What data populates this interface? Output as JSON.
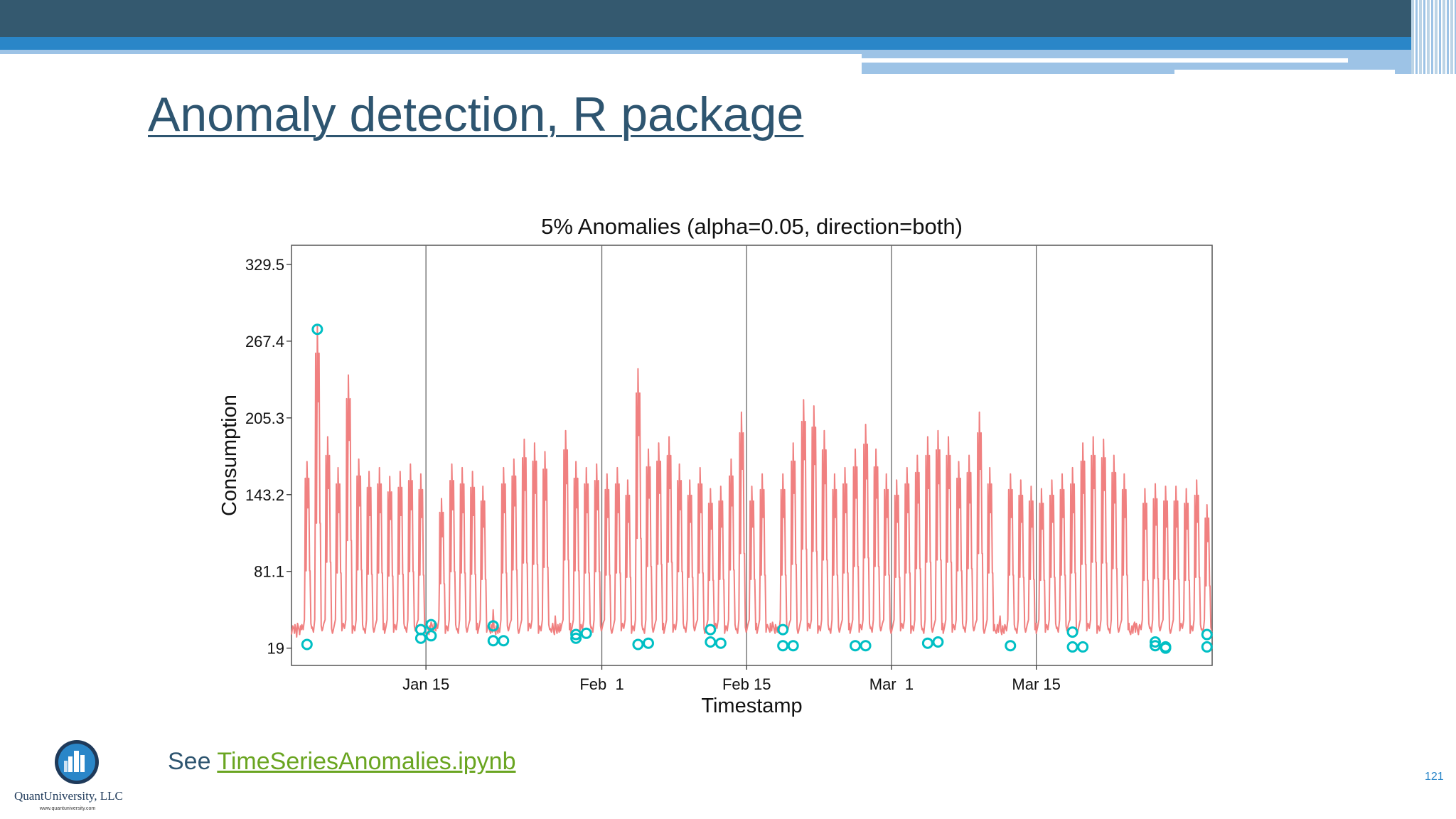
{
  "slide": {
    "title": "Anomaly detection, R package",
    "footer_prefix": "See",
    "footer_link": "TimeSeriesAnomalies.ipynb",
    "logo_name": "QuantUniversity, LLC",
    "logo_url": "www.quantuniversity.com",
    "page_number": "121"
  },
  "colors": {
    "header_dark": "#34596f",
    "header_blue": "#2a86c8",
    "title": "#2e5570",
    "link": "#6aa521",
    "series_line": "#f08080",
    "anomaly_marker": "#00bfc4"
  },
  "chart_data": {
    "type": "line",
    "title": "5% Anomalies (alpha=0.05, direction=both)",
    "xlabel": "Timestamp",
    "ylabel": "Consumption",
    "x_start": "2015-01-02",
    "x_end": "2015-03-31",
    "x_ticks": [
      {
        "date": "2015-01-15",
        "label": "Jan 15"
      },
      {
        "date": "2015-02-01",
        "label": "Feb  1"
      },
      {
        "date": "2015-02-15",
        "label": "Feb 15"
      },
      {
        "date": "2015-03-01",
        "label": "Mar  1"
      },
      {
        "date": "2015-03-15",
        "label": "Mar 15"
      }
    ],
    "y_ticks": [
      19,
      81.1,
      143.2,
      205.3,
      267.4,
      329.5
    ],
    "ylim": [
      5,
      345
    ],
    "grid": "vertical lines at x ticks",
    "series": [
      {
        "type": "line",
        "description": "hourly consumption, daily cycles",
        "daily_peaks": [
          [
            "2015-01-02",
            28
          ],
          [
            "2015-01-03",
            170
          ],
          [
            "2015-01-04",
            280
          ],
          [
            "2015-01-05",
            190
          ],
          [
            "2015-01-06",
            165
          ],
          [
            "2015-01-07",
            240
          ],
          [
            "2015-01-08",
            172
          ],
          [
            "2015-01-09",
            162
          ],
          [
            "2015-01-10",
            165
          ],
          [
            "2015-01-11",
            158
          ],
          [
            "2015-01-12",
            162
          ],
          [
            "2015-01-13",
            168
          ],
          [
            "2015-01-14",
            160
          ],
          [
            "2015-01-15",
            40
          ],
          [
            "2015-01-16",
            140
          ],
          [
            "2015-01-17",
            168
          ],
          [
            "2015-01-18",
            165
          ],
          [
            "2015-01-19",
            162
          ],
          [
            "2015-01-20",
            150
          ],
          [
            "2015-01-21",
            50
          ],
          [
            "2015-01-22",
            165
          ],
          [
            "2015-01-23",
            172
          ],
          [
            "2015-01-24",
            188
          ],
          [
            "2015-01-25",
            185
          ],
          [
            "2015-01-26",
            178
          ],
          [
            "2015-01-27",
            45
          ],
          [
            "2015-01-28",
            195
          ],
          [
            "2015-01-29",
            170
          ],
          [
            "2015-01-30",
            165
          ],
          [
            "2015-01-31",
            168
          ],
          [
            "2015-02-01",
            160
          ],
          [
            "2015-02-02",
            165
          ],
          [
            "2015-02-03",
            155
          ],
          [
            "2015-02-04",
            245
          ],
          [
            "2015-02-05",
            180
          ],
          [
            "2015-02-06",
            185
          ],
          [
            "2015-02-07",
            190
          ],
          [
            "2015-02-08",
            168
          ],
          [
            "2015-02-09",
            155
          ],
          [
            "2015-02-10",
            165
          ],
          [
            "2015-02-11",
            148
          ],
          [
            "2015-02-12",
            150
          ],
          [
            "2015-02-13",
            172
          ],
          [
            "2015-02-14",
            210
          ],
          [
            "2015-02-15",
            150
          ],
          [
            "2015-02-16",
            160
          ],
          [
            "2015-02-17",
            40
          ],
          [
            "2015-02-18",
            160
          ],
          [
            "2015-02-19",
            185
          ],
          [
            "2015-02-20",
            220
          ],
          [
            "2015-02-21",
            215
          ],
          [
            "2015-02-22",
            195
          ],
          [
            "2015-02-23",
            160
          ],
          [
            "2015-02-24",
            165
          ],
          [
            "2015-02-25",
            180
          ],
          [
            "2015-02-26",
            200
          ],
          [
            "2015-02-27",
            180
          ],
          [
            "2015-02-28",
            160
          ],
          [
            "2015-03-01",
            155
          ],
          [
            "2015-03-02",
            165
          ],
          [
            "2015-03-03",
            175
          ],
          [
            "2015-03-04",
            190
          ],
          [
            "2015-03-05",
            195
          ],
          [
            "2015-03-06",
            190
          ],
          [
            "2015-03-07",
            170
          ],
          [
            "2015-03-08",
            175
          ],
          [
            "2015-03-09",
            210
          ],
          [
            "2015-03-10",
            165
          ],
          [
            "2015-03-11",
            45
          ],
          [
            "2015-03-12",
            160
          ],
          [
            "2015-03-13",
            155
          ],
          [
            "2015-03-14",
            150
          ],
          [
            "2015-03-15",
            148
          ],
          [
            "2015-03-16",
            155
          ],
          [
            "2015-03-17",
            160
          ],
          [
            "2015-03-18",
            165
          ],
          [
            "2015-03-19",
            185
          ],
          [
            "2015-03-20",
            190
          ],
          [
            "2015-03-21",
            188
          ],
          [
            "2015-03-22",
            175
          ],
          [
            "2015-03-23",
            160
          ],
          [
            "2015-03-24",
            40
          ],
          [
            "2015-03-25",
            148
          ],
          [
            "2015-03-26",
            152
          ],
          [
            "2015-03-27",
            150
          ],
          [
            "2015-03-28",
            150
          ],
          [
            "2015-03-29",
            148
          ],
          [
            "2015-03-30",
            155
          ],
          [
            "2015-03-31",
            135
          ]
        ],
        "baseline": 34
      },
      {
        "type": "anomalies",
        "points": [
          [
            "2015-01-03",
            22
          ],
          [
            "2015-01-04",
            277
          ],
          [
            "2015-01-14",
            27
          ],
          [
            "2015-01-14",
            34
          ],
          [
            "2015-01-15",
            29
          ],
          [
            "2015-01-15",
            38
          ],
          [
            "2015-01-21",
            25
          ],
          [
            "2015-01-21",
            37
          ],
          [
            "2015-01-22",
            25
          ],
          [
            "2015-01-29",
            30
          ],
          [
            "2015-01-29",
            27
          ],
          [
            "2015-01-30",
            31
          ],
          [
            "2015-02-04",
            22
          ],
          [
            "2015-02-05",
            23
          ],
          [
            "2015-02-11",
            24
          ],
          [
            "2015-02-11",
            34
          ],
          [
            "2015-02-12",
            23
          ],
          [
            "2015-02-18",
            21
          ],
          [
            "2015-02-18",
            34
          ],
          [
            "2015-02-19",
            21
          ],
          [
            "2015-02-25",
            21
          ],
          [
            "2015-02-26",
            21
          ],
          [
            "2015-03-04",
            23
          ],
          [
            "2015-03-05",
            24
          ],
          [
            "2015-03-12",
            21
          ],
          [
            "2015-03-18",
            20
          ],
          [
            "2015-03-18",
            32
          ],
          [
            "2015-03-19",
            20
          ],
          [
            "2015-03-26",
            21
          ],
          [
            "2015-03-26",
            24
          ],
          [
            "2015-03-27",
            19
          ],
          [
            "2015-03-27",
            20
          ],
          [
            "2015-03-31",
            20
          ],
          [
            "2015-03-31",
            30
          ]
        ]
      }
    ]
  }
}
